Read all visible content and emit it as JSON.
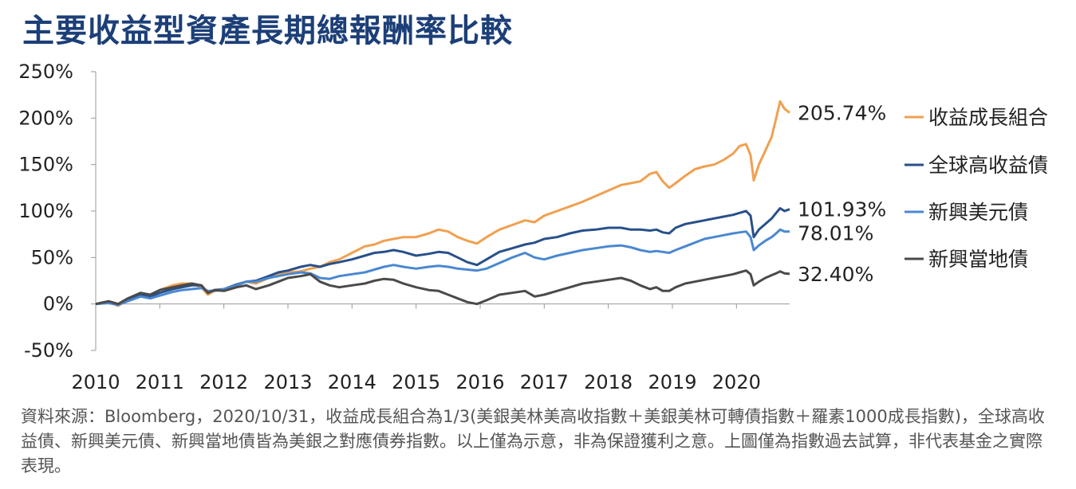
{
  "title": "主要收益型資產長期總報酬率比較",
  "source_note": "資料來源：Bloomberg，2020/10/31，收益成長組合為1/3(美銀美林美高收指數＋美銀美林可轉債指數＋羅素1000成長指數)，全球高收益債、新興美元債、新興當地債皆為美銀之對應債券指數。以上僅為示意，非為保證獲利之意。上圖僅為指數過去試算，非代表基金之實際表現。",
  "chart_data": {
    "type": "line",
    "title": "主要收益型資產長期總報酬率比較",
    "xlabel": "",
    "ylabel": "",
    "xlim": [
      2010.0,
      2020.83
    ],
    "ylim": [
      -50,
      250
    ],
    "y_ticks": [
      250,
      200,
      150,
      100,
      50,
      0,
      -50
    ],
    "y_tick_labels": [
      "250%",
      "200%",
      "150%",
      "100%",
      "50%",
      "0%",
      "-50%"
    ],
    "x_ticks": [
      2010,
      2011,
      2012,
      2013,
      2014,
      2015,
      2016,
      2017,
      2018,
      2019,
      2020
    ],
    "x_tick_labels": [
      "2010",
      "2011",
      "2012",
      "2013",
      "2014",
      "2015",
      "2016",
      "2017",
      "2018",
      "2019",
      "2020"
    ],
    "grid": false,
    "legend_position": "right",
    "series": [
      {
        "name": "收益成長組合",
        "color": "#f0a050",
        "end_label": "205.74%",
        "points": [
          [
            2010.0,
            0
          ],
          [
            2010.2,
            2
          ],
          [
            2010.35,
            -2
          ],
          [
            2010.5,
            5
          ],
          [
            2010.7,
            12
          ],
          [
            2010.85,
            8
          ],
          [
            2011.0,
            15
          ],
          [
            2011.2,
            20
          ],
          [
            2011.35,
            22
          ],
          [
            2011.5,
            22
          ],
          [
            2011.65,
            18
          ],
          [
            2011.75,
            10
          ],
          [
            2011.85,
            14
          ],
          [
            2012.0,
            15
          ],
          [
            2012.2,
            20
          ],
          [
            2012.35,
            24
          ],
          [
            2012.5,
            22
          ],
          [
            2012.7,
            28
          ],
          [
            2012.85,
            32
          ],
          [
            2013.0,
            34
          ],
          [
            2013.2,
            35
          ],
          [
            2013.35,
            38
          ],
          [
            2013.5,
            40
          ],
          [
            2013.65,
            45
          ],
          [
            2013.8,
            48
          ],
          [
            2014.0,
            55
          ],
          [
            2014.2,
            62
          ],
          [
            2014.35,
            64
          ],
          [
            2014.5,
            68
          ],
          [
            2014.65,
            70
          ],
          [
            2014.8,
            72
          ],
          [
            2015.0,
            72
          ],
          [
            2015.2,
            76
          ],
          [
            2015.35,
            80
          ],
          [
            2015.5,
            78
          ],
          [
            2015.65,
            72
          ],
          [
            2015.8,
            68
          ],
          [
            2015.95,
            65
          ],
          [
            2016.1,
            72
          ],
          [
            2016.3,
            80
          ],
          [
            2016.5,
            85
          ],
          [
            2016.7,
            90
          ],
          [
            2016.85,
            88
          ],
          [
            2017.0,
            95
          ],
          [
            2017.2,
            100
          ],
          [
            2017.4,
            105
          ],
          [
            2017.6,
            110
          ],
          [
            2017.8,
            116
          ],
          [
            2018.0,
            122
          ],
          [
            2018.2,
            128
          ],
          [
            2018.35,
            130
          ],
          [
            2018.5,
            132
          ],
          [
            2018.65,
            140
          ],
          [
            2018.75,
            142
          ],
          [
            2018.85,
            132
          ],
          [
            2018.95,
            125
          ],
          [
            2019.05,
            130
          ],
          [
            2019.2,
            138
          ],
          [
            2019.35,
            145
          ],
          [
            2019.5,
            148
          ],
          [
            2019.65,
            150
          ],
          [
            2019.8,
            155
          ],
          [
            2019.95,
            162
          ],
          [
            2020.05,
            170
          ],
          [
            2020.15,
            172
          ],
          [
            2020.22,
            160
          ],
          [
            2020.27,
            133
          ],
          [
            2020.35,
            150
          ],
          [
            2020.45,
            165
          ],
          [
            2020.55,
            180
          ],
          [
            2020.62,
            200
          ],
          [
            2020.68,
            218
          ],
          [
            2020.75,
            210
          ],
          [
            2020.83,
            205.74
          ]
        ]
      },
      {
        "name": "全球高收益債",
        "color": "#28508a",
        "end_label": "101.93%",
        "points": [
          [
            2010.0,
            0
          ],
          [
            2010.2,
            2
          ],
          [
            2010.35,
            0
          ],
          [
            2010.5,
            4
          ],
          [
            2010.7,
            10
          ],
          [
            2010.85,
            8
          ],
          [
            2011.0,
            12
          ],
          [
            2011.2,
            16
          ],
          [
            2011.35,
            18
          ],
          [
            2011.5,
            20
          ],
          [
            2011.65,
            20
          ],
          [
            2011.75,
            12
          ],
          [
            2011.85,
            15
          ],
          [
            2012.0,
            16
          ],
          [
            2012.2,
            21
          ],
          [
            2012.35,
            24
          ],
          [
            2012.5,
            25
          ],
          [
            2012.7,
            30
          ],
          [
            2012.85,
            34
          ],
          [
            2013.0,
            36
          ],
          [
            2013.2,
            40
          ],
          [
            2013.35,
            42
          ],
          [
            2013.5,
            40
          ],
          [
            2013.65,
            43
          ],
          [
            2013.8,
            45
          ],
          [
            2014.0,
            48
          ],
          [
            2014.2,
            52
          ],
          [
            2014.35,
            55
          ],
          [
            2014.5,
            56
          ],
          [
            2014.65,
            58
          ],
          [
            2014.8,
            56
          ],
          [
            2015.0,
            52
          ],
          [
            2015.2,
            54
          ],
          [
            2015.35,
            56
          ],
          [
            2015.5,
            55
          ],
          [
            2015.65,
            50
          ],
          [
            2015.8,
            45
          ],
          [
            2015.95,
            42
          ],
          [
            2016.1,
            48
          ],
          [
            2016.3,
            56
          ],
          [
            2016.5,
            60
          ],
          [
            2016.7,
            64
          ],
          [
            2016.85,
            66
          ],
          [
            2017.0,
            70
          ],
          [
            2017.2,
            72
          ],
          [
            2017.4,
            76
          ],
          [
            2017.6,
            79
          ],
          [
            2017.8,
            80
          ],
          [
            2018.0,
            82
          ],
          [
            2018.2,
            82
          ],
          [
            2018.35,
            80
          ],
          [
            2018.5,
            80
          ],
          [
            2018.65,
            79
          ],
          [
            2018.75,
            80
          ],
          [
            2018.85,
            77
          ],
          [
            2018.95,
            76
          ],
          [
            2019.05,
            82
          ],
          [
            2019.2,
            86
          ],
          [
            2019.35,
            88
          ],
          [
            2019.5,
            90
          ],
          [
            2019.65,
            92
          ],
          [
            2019.8,
            94
          ],
          [
            2019.95,
            96
          ],
          [
            2020.05,
            98
          ],
          [
            2020.15,
            100
          ],
          [
            2020.22,
            95
          ],
          [
            2020.27,
            72
          ],
          [
            2020.35,
            80
          ],
          [
            2020.45,
            86
          ],
          [
            2020.55,
            92
          ],
          [
            2020.62,
            98
          ],
          [
            2020.68,
            103
          ],
          [
            2020.75,
            100
          ],
          [
            2020.83,
            101.93
          ]
        ]
      },
      {
        "name": "新興美元債",
        "color": "#4a88d0",
        "end_label": "78.01%",
        "points": [
          [
            2010.0,
            0
          ],
          [
            2010.2,
            1
          ],
          [
            2010.35,
            -1
          ],
          [
            2010.5,
            3
          ],
          [
            2010.7,
            8
          ],
          [
            2010.85,
            6
          ],
          [
            2011.0,
            9
          ],
          [
            2011.2,
            13
          ],
          [
            2011.35,
            15
          ],
          [
            2011.5,
            16
          ],
          [
            2011.65,
            17
          ],
          [
            2011.75,
            14
          ],
          [
            2011.85,
            14
          ],
          [
            2012.0,
            16
          ],
          [
            2012.2,
            20
          ],
          [
            2012.35,
            24
          ],
          [
            2012.5,
            24
          ],
          [
            2012.7,
            28
          ],
          [
            2012.85,
            30
          ],
          [
            2013.0,
            32
          ],
          [
            2013.2,
            34
          ],
          [
            2013.35,
            33
          ],
          [
            2013.5,
            28
          ],
          [
            2013.65,
            27
          ],
          [
            2013.8,
            30
          ],
          [
            2014.0,
            32
          ],
          [
            2014.2,
            34
          ],
          [
            2014.35,
            37
          ],
          [
            2014.5,
            40
          ],
          [
            2014.65,
            42
          ],
          [
            2014.8,
            40
          ],
          [
            2015.0,
            38
          ],
          [
            2015.2,
            40
          ],
          [
            2015.35,
            41
          ],
          [
            2015.5,
            40
          ],
          [
            2015.65,
            38
          ],
          [
            2015.8,
            37
          ],
          [
            2015.95,
            36
          ],
          [
            2016.1,
            38
          ],
          [
            2016.3,
            44
          ],
          [
            2016.5,
            50
          ],
          [
            2016.7,
            55
          ],
          [
            2016.85,
            50
          ],
          [
            2017.0,
            48
          ],
          [
            2017.2,
            52
          ],
          [
            2017.4,
            55
          ],
          [
            2017.6,
            58
          ],
          [
            2017.8,
            60
          ],
          [
            2018.0,
            62
          ],
          [
            2018.2,
            63
          ],
          [
            2018.35,
            61
          ],
          [
            2018.5,
            58
          ],
          [
            2018.65,
            56
          ],
          [
            2018.75,
            57
          ],
          [
            2018.85,
            56
          ],
          [
            2018.95,
            55
          ],
          [
            2019.05,
            58
          ],
          [
            2019.2,
            62
          ],
          [
            2019.35,
            66
          ],
          [
            2019.5,
            70
          ],
          [
            2019.65,
            72
          ],
          [
            2019.8,
            74
          ],
          [
            2019.95,
            76
          ],
          [
            2020.05,
            77
          ],
          [
            2020.15,
            78
          ],
          [
            2020.22,
            72
          ],
          [
            2020.27,
            58
          ],
          [
            2020.35,
            63
          ],
          [
            2020.45,
            68
          ],
          [
            2020.55,
            72
          ],
          [
            2020.62,
            76
          ],
          [
            2020.68,
            80
          ],
          [
            2020.75,
            78
          ],
          [
            2020.83,
            78.01
          ]
        ]
      },
      {
        "name": "新興當地債",
        "color": "#4a4a4a",
        "end_label": "32.40%",
        "points": [
          [
            2010.0,
            0
          ],
          [
            2010.2,
            3
          ],
          [
            2010.35,
            0
          ],
          [
            2010.5,
            6
          ],
          [
            2010.7,
            12
          ],
          [
            2010.85,
            10
          ],
          [
            2011.0,
            15
          ],
          [
            2011.2,
            18
          ],
          [
            2011.35,
            20
          ],
          [
            2011.5,
            22
          ],
          [
            2011.65,
            20
          ],
          [
            2011.75,
            12
          ],
          [
            2011.85,
            15
          ],
          [
            2012.0,
            14
          ],
          [
            2012.2,
            18
          ],
          [
            2012.35,
            20
          ],
          [
            2012.5,
            16
          ],
          [
            2012.7,
            20
          ],
          [
            2012.85,
            24
          ],
          [
            2013.0,
            28
          ],
          [
            2013.2,
            30
          ],
          [
            2013.35,
            32
          ],
          [
            2013.5,
            24
          ],
          [
            2013.65,
            20
          ],
          [
            2013.8,
            18
          ],
          [
            2014.0,
            20
          ],
          [
            2014.2,
            22
          ],
          [
            2014.35,
            25
          ],
          [
            2014.5,
            27
          ],
          [
            2014.65,
            26
          ],
          [
            2014.8,
            22
          ],
          [
            2015.0,
            18
          ],
          [
            2015.2,
            15
          ],
          [
            2015.35,
            14
          ],
          [
            2015.5,
            10
          ],
          [
            2015.65,
            6
          ],
          [
            2015.8,
            2
          ],
          [
            2015.95,
            0
          ],
          [
            2016.1,
            4
          ],
          [
            2016.3,
            10
          ],
          [
            2016.5,
            12
          ],
          [
            2016.7,
            14
          ],
          [
            2016.85,
            8
          ],
          [
            2017.0,
            10
          ],
          [
            2017.2,
            14
          ],
          [
            2017.4,
            18
          ],
          [
            2017.6,
            22
          ],
          [
            2017.8,
            24
          ],
          [
            2018.0,
            26
          ],
          [
            2018.2,
            28
          ],
          [
            2018.35,
            25
          ],
          [
            2018.5,
            20
          ],
          [
            2018.65,
            16
          ],
          [
            2018.75,
            18
          ],
          [
            2018.85,
            14
          ],
          [
            2018.95,
            14
          ],
          [
            2019.05,
            18
          ],
          [
            2019.2,
            22
          ],
          [
            2019.35,
            24
          ],
          [
            2019.5,
            26
          ],
          [
            2019.65,
            28
          ],
          [
            2019.8,
            30
          ],
          [
            2019.95,
            32
          ],
          [
            2020.05,
            34
          ],
          [
            2020.15,
            36
          ],
          [
            2020.22,
            32
          ],
          [
            2020.27,
            20
          ],
          [
            2020.35,
            24
          ],
          [
            2020.45,
            28
          ],
          [
            2020.55,
            31
          ],
          [
            2020.62,
            33
          ],
          [
            2020.68,
            35
          ],
          [
            2020.75,
            33
          ],
          [
            2020.83,
            32.4
          ]
        ]
      }
    ]
  }
}
